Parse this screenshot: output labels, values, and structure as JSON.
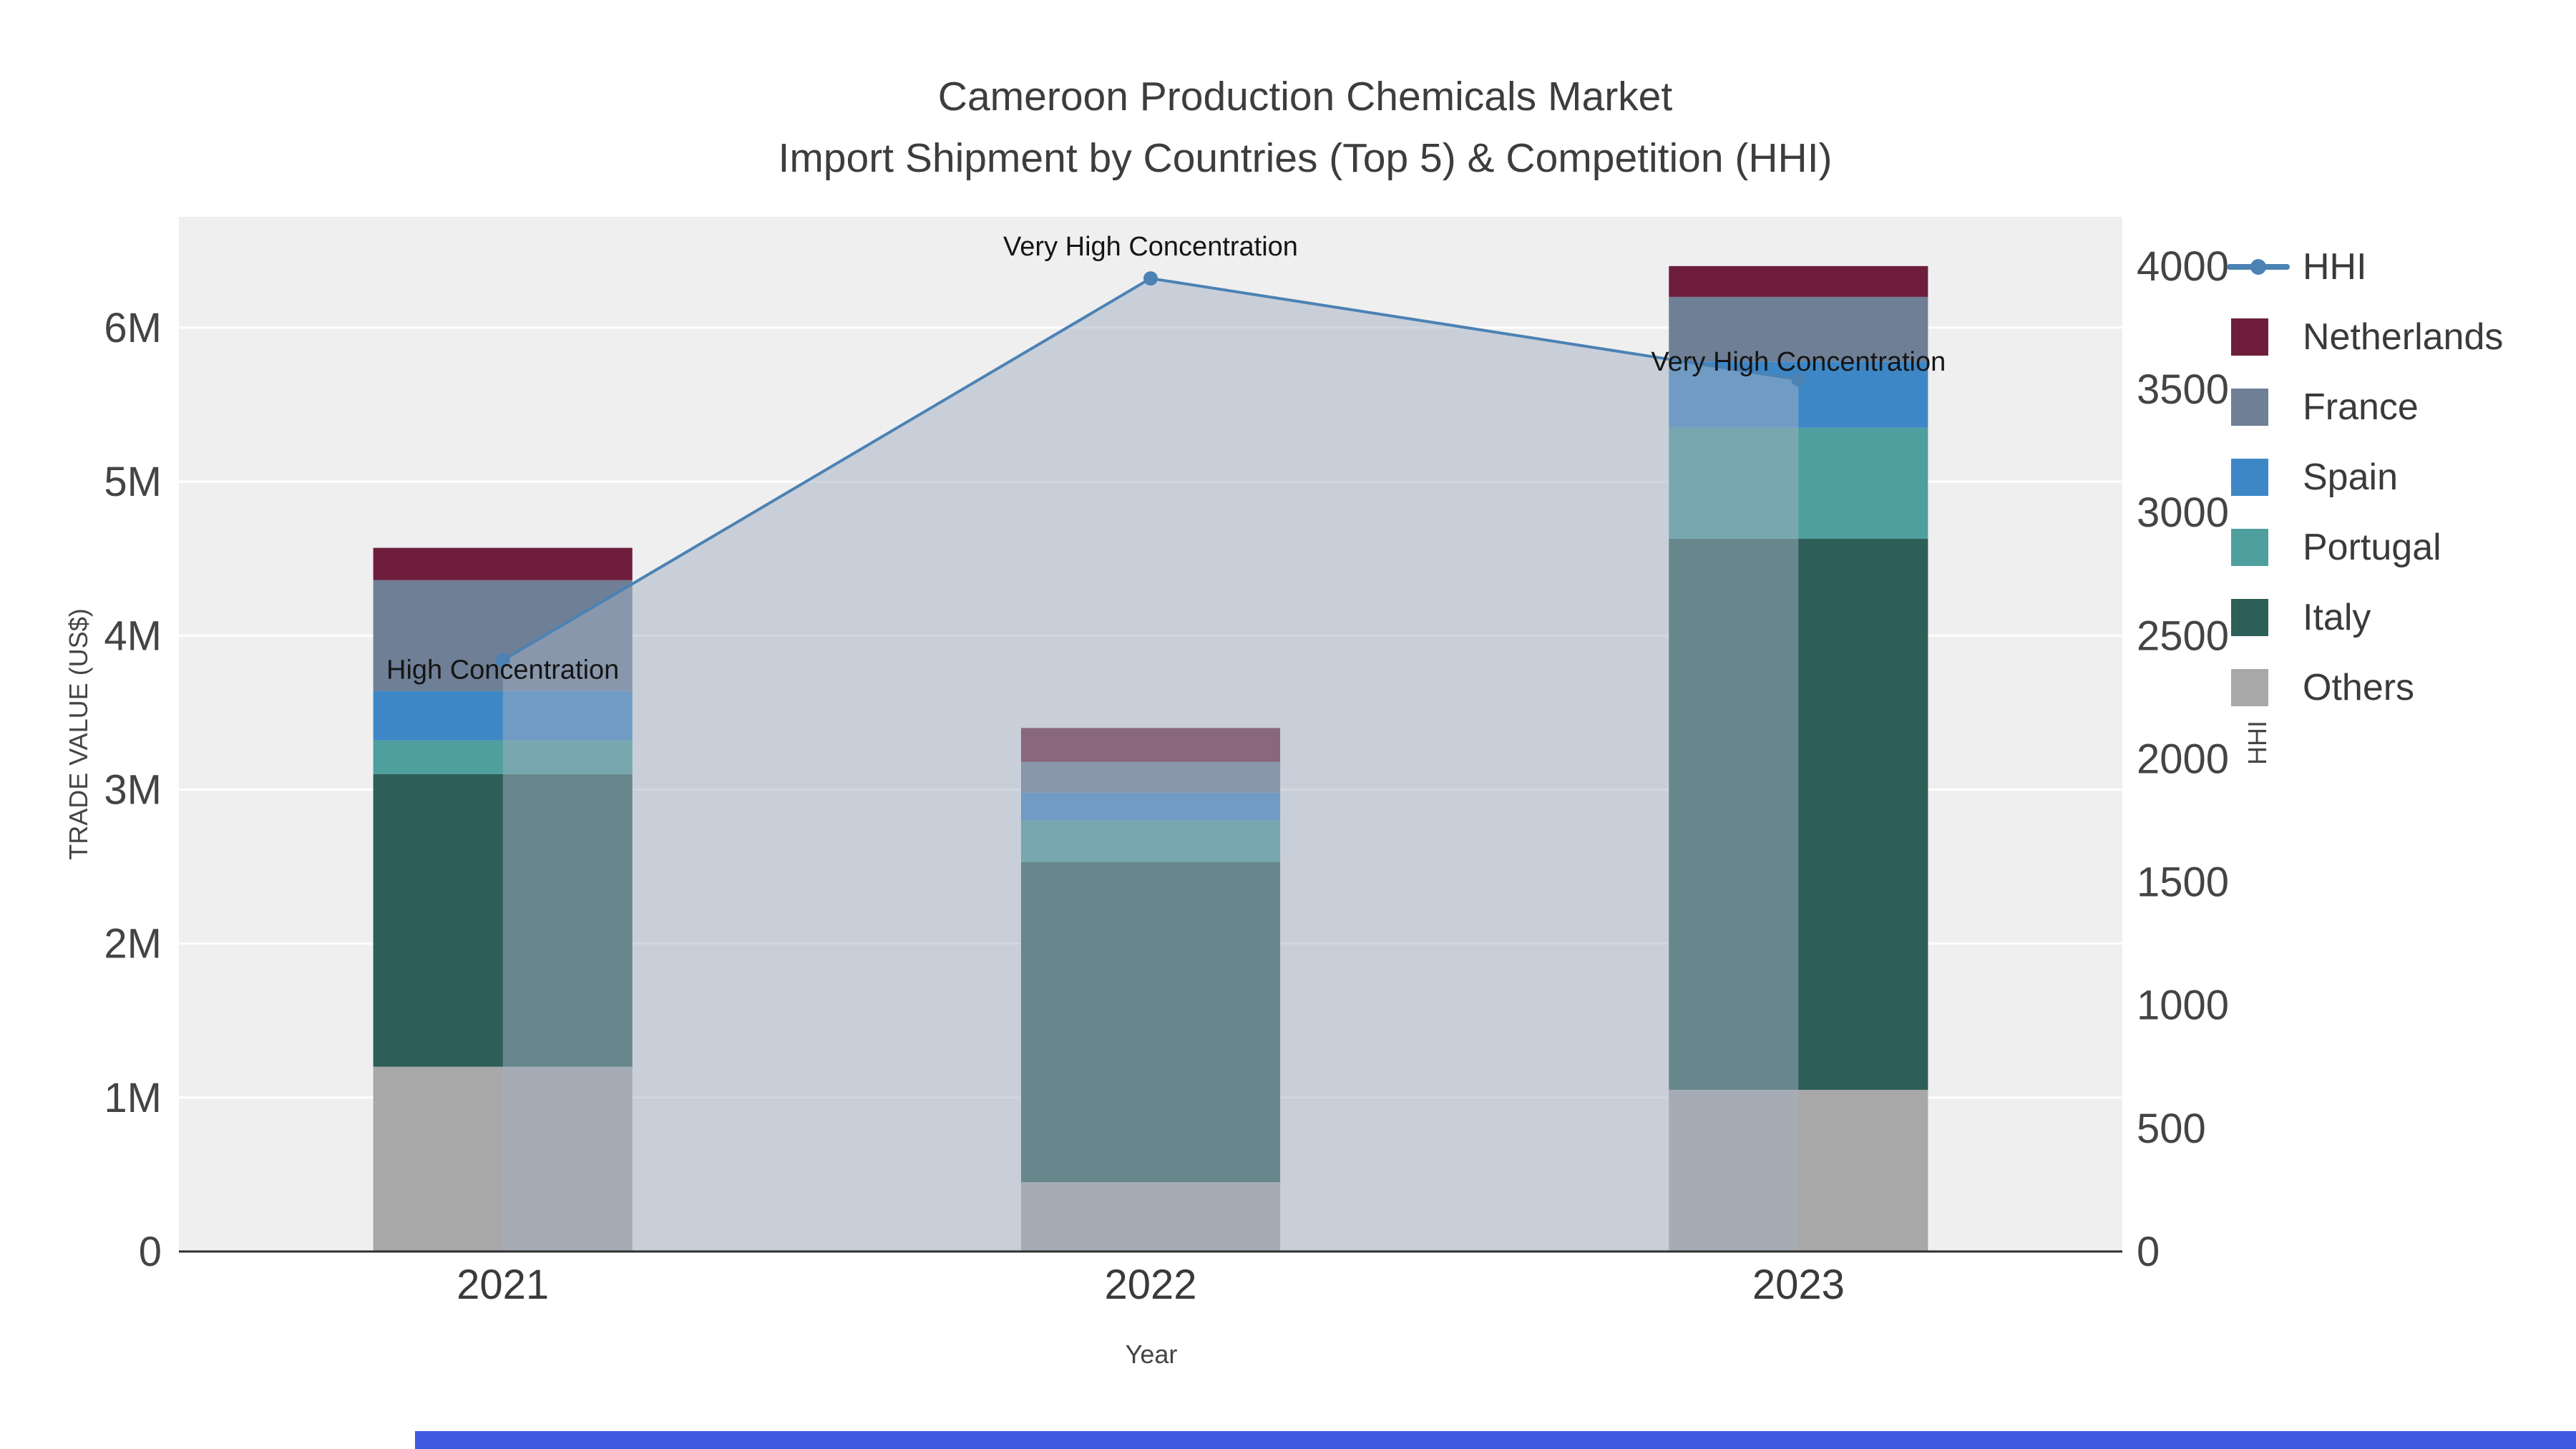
{
  "chart_data": {
    "type": "bar",
    "combo": "stacked-bar-with-line",
    "title_line1": "Cameroon Production Chemicals Market",
    "title_line2": "Import Shipment by Countries (Top 5) & Competition (HHI)",
    "xlabel": "Year",
    "ylabel_left": "TRADE VALUE (US$)",
    "ylabel_right": "HHI",
    "categories": [
      "2021",
      "2022",
      "2023"
    ],
    "bar_series": [
      {
        "name": "Others",
        "color": "#a8a8a8",
        "values": [
          1200000,
          450000,
          1050000
        ]
      },
      {
        "name": "Italy",
        "color": "#2d5f58",
        "values": [
          1900000,
          2080000,
          3580000
        ]
      },
      {
        "name": "Portugal",
        "color": "#4f9f9f",
        "values": [
          220000,
          270000,
          720000
        ]
      },
      {
        "name": "Spain",
        "color": "#3d87c6",
        "values": [
          320000,
          180000,
          430000
        ]
      },
      {
        "name": "France",
        "color": "#6e7f96",
        "values": [
          720000,
          200000,
          420000
        ]
      },
      {
        "name": "Netherlands",
        "color": "#6e1e3c",
        "values": [
          210000,
          220000,
          200000
        ]
      }
    ],
    "line_series": {
      "name": "HHI",
      "color": "#4c82b4",
      "fill": "rgba(163,176,194,0.5)",
      "values": [
        2400,
        3950,
        3540
      ]
    },
    "annotations": [
      {
        "text": "High Concentration",
        "category": "2021"
      },
      {
        "text": "Very High Concentration",
        "category": "2022"
      },
      {
        "text": "Very High Concentration",
        "category": "2023"
      }
    ],
    "left_axis": {
      "range": [
        0,
        6720000
      ],
      "tick_values": [
        0,
        1000000,
        2000000,
        3000000,
        4000000,
        5000000,
        6000000
      ],
      "tick_labels": [
        "0",
        "1M",
        "2M",
        "3M",
        "4M",
        "5M",
        "6M"
      ]
    },
    "right_axis": {
      "range": [
        0,
        4200
      ],
      "tick_values": [
        0,
        500,
        1000,
        1500,
        2000,
        2500,
        3000,
        3500,
        4000
      ],
      "tick_labels": [
        "0",
        "500",
        "1000",
        "1500",
        "2000",
        "2500",
        "3000",
        "3500",
        "4000"
      ]
    },
    "legend_order": [
      "HHI",
      "Netherlands",
      "France",
      "Spain",
      "Portugal",
      "Italy",
      "Others"
    ],
    "plot_bg": "#efefef",
    "grid_color": "#ffffff",
    "axis_line_color": "#2f2f2f",
    "tick_color": "#444444",
    "annotation_color": "#151515"
  },
  "bottom_bar": {
    "color": "#3d5ae1"
  }
}
